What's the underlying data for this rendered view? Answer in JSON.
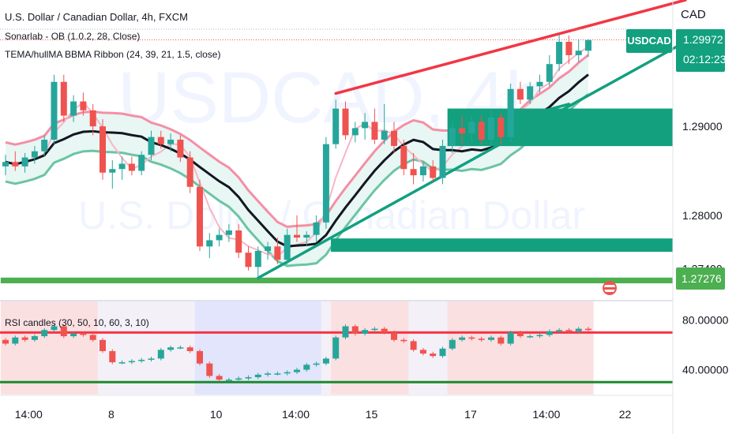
{
  "chart_data": {
    "type": "candlestick",
    "title": "U.S. Dollar / Canadian Dollar, 4h, FXCM",
    "watermark_symbol": "USDCAD, 4h",
    "watermark_name": "U.S. Dollar / Canadian Dollar",
    "currency_label": "CAD",
    "indicators": [
      "Sonarlab - OB (1.0.2, 28, Close)",
      "TEMA/hullMA BBMA Ribbon (24, 39, 21, 1.5, close)"
    ],
    "rsi_label": "RSI candles (30, 50, 10, 60, 3, 10)",
    "symbol_tag": "USDCAD",
    "last_price": "1.29972",
    "countdown": "02:12:23",
    "support_price": "1.27276",
    "yticks": [
      "1.29000",
      "1.28000",
      "1.27400"
    ],
    "rsi_yticks": [
      "80.00000",
      "40.00000"
    ],
    "xticks": [
      "14:00",
      "8",
      "10",
      "14:00",
      "15",
      "17",
      "14:00",
      "22"
    ],
    "ylim": [
      1.2705,
      1.3042
    ],
    "rsi_ylim": [
      20,
      95
    ],
    "rsi_levels": [
      70,
      30
    ],
    "candles": [
      [
        1.2855,
        1.2868,
        1.2845,
        1.286
      ],
      [
        1.286,
        1.2872,
        1.285,
        1.2855
      ],
      [
        1.2855,
        1.287,
        1.2848,
        1.2865
      ],
      [
        1.2865,
        1.2878,
        1.2858,
        1.2872
      ],
      [
        1.2872,
        1.289,
        1.2866,
        1.2885
      ],
      [
        1.2885,
        1.2958,
        1.288,
        1.295
      ],
      [
        1.295,
        1.2958,
        1.2905,
        1.2912
      ],
      [
        1.2912,
        1.2935,
        1.2905,
        1.2928
      ],
      [
        1.2928,
        1.2938,
        1.2912,
        1.2918
      ],
      [
        1.2918,
        1.2925,
        1.289,
        1.29
      ],
      [
        1.29,
        1.2908,
        1.284,
        1.2848
      ],
      [
        1.2848,
        1.2862,
        1.283,
        1.2852
      ],
      [
        1.2852,
        1.2866,
        1.284,
        1.2858
      ],
      [
        1.2858,
        1.2866,
        1.2845,
        1.285
      ],
      [
        1.285,
        1.2872,
        1.2845,
        1.2868
      ],
      [
        1.2868,
        1.2895,
        1.2862,
        1.2888
      ],
      [
        1.2888,
        1.2895,
        1.2875,
        1.288
      ],
      [
        1.288,
        1.2892,
        1.2872,
        1.2885
      ],
      [
        1.2885,
        1.289,
        1.286,
        1.2865
      ],
      [
        1.2865,
        1.2872,
        1.2825,
        1.2832
      ],
      [
        1.2832,
        1.284,
        1.276,
        1.2765
      ],
      [
        1.2765,
        1.278,
        1.2752,
        1.2772
      ],
      [
        1.2772,
        1.2785,
        1.2765,
        1.2778
      ],
      [
        1.2778,
        1.279,
        1.277,
        1.2783
      ],
      [
        1.2783,
        1.279,
        1.2752,
        1.2758
      ],
      [
        1.2758,
        1.2765,
        1.2738,
        1.2742
      ],
      [
        1.2742,
        1.2765,
        1.2728,
        1.276
      ],
      [
        1.276,
        1.277,
        1.275,
        1.2765
      ],
      [
        1.2765,
        1.2775,
        1.2745,
        1.275
      ],
      [
        1.275,
        1.2785,
        1.2745,
        1.2778
      ],
      [
        1.2778,
        1.28,
        1.277,
        1.2775
      ],
      [
        1.2775,
        1.2782,
        1.2765,
        1.2778
      ],
      [
        1.2778,
        1.28,
        1.277,
        1.2792
      ],
      [
        1.2792,
        1.2888,
        1.2785,
        1.288
      ],
      [
        1.288,
        1.293,
        1.2875,
        1.292
      ],
      [
        1.292,
        1.2928,
        1.2885,
        1.289
      ],
      [
        1.289,
        1.2905,
        1.2882,
        1.2898
      ],
      [
        1.2898,
        1.2915,
        1.2885,
        1.2905
      ],
      [
        1.2905,
        1.292,
        1.288,
        1.2885
      ],
      [
        1.2885,
        1.2925,
        1.288,
        1.2895
      ],
      [
        1.2895,
        1.2905,
        1.287,
        1.2878
      ],
      [
        1.2878,
        1.2885,
        1.2845,
        1.2852
      ],
      [
        1.2852,
        1.287,
        1.2835,
        1.2845
      ],
      [
        1.2845,
        1.286,
        1.2838,
        1.2855
      ],
      [
        1.2855,
        1.2862,
        1.2838,
        1.2842
      ],
      [
        1.2842,
        1.2885,
        1.2835,
        1.2878
      ],
      [
        1.2878,
        1.2905,
        1.287,
        1.2898
      ],
      [
        1.2898,
        1.2912,
        1.288,
        1.2892
      ],
      [
        1.2892,
        1.2912,
        1.2882,
        1.2905
      ],
      [
        1.2905,
        1.2912,
        1.288,
        1.2885
      ],
      [
        1.2885,
        1.2918,
        1.2878,
        1.291
      ],
      [
        1.291,
        1.2915,
        1.288,
        1.2888
      ],
      [
        1.2888,
        1.2948,
        1.2882,
        1.2942
      ],
      [
        1.2942,
        1.295,
        1.2925,
        1.293
      ],
      [
        1.293,
        1.295,
        1.2925,
        1.2945
      ],
      [
        1.2945,
        1.2958,
        1.2938,
        1.295
      ],
      [
        1.295,
        1.298,
        1.2945,
        1.297
      ],
      [
        1.297,
        1.3003,
        1.2962,
        1.2995
      ],
      [
        1.2995,
        1.3002,
        1.297,
        1.298
      ],
      [
        1.298,
        1.2998,
        1.2972,
        1.2985
      ],
      [
        1.2985,
        1.2998,
        1.2978,
        1.2997
      ]
    ],
    "rsi": [
      [
        64,
        61
      ],
      [
        61,
        66
      ],
      [
        66,
        64
      ],
      [
        64,
        67
      ],
      [
        67,
        72
      ],
      [
        72,
        75
      ],
      [
        75,
        67
      ],
      [
        67,
        69
      ],
      [
        69,
        68
      ],
      [
        68,
        64
      ],
      [
        64,
        55
      ],
      [
        55,
        46
      ],
      [
        46,
        46
      ],
      [
        46,
        47
      ],
      [
        47,
        48
      ],
      [
        48,
        49
      ],
      [
        49,
        56
      ],
      [
        56,
        58
      ],
      [
        58,
        58
      ],
      [
        58,
        55
      ],
      [
        55,
        45
      ],
      [
        45,
        35
      ],
      [
        35,
        32
      ],
      [
        32,
        32
      ],
      [
        32,
        33
      ],
      [
        33,
        34
      ],
      [
        34,
        36
      ],
      [
        36,
        37
      ],
      [
        37,
        37
      ],
      [
        37,
        38
      ],
      [
        38,
        40
      ],
      [
        40,
        44
      ],
      [
        44,
        45
      ],
      [
        45,
        49
      ],
      [
        49,
        66
      ],
      [
        66,
        75
      ],
      [
        75,
        69
      ],
      [
        69,
        72
      ],
      [
        72,
        73
      ],
      [
        73,
        70
      ],
      [
        70,
        64
      ],
      [
        64,
        63
      ],
      [
        63,
        56
      ],
      [
        56,
        53
      ],
      [
        53,
        51
      ],
      [
        51,
        57
      ],
      [
        57,
        64
      ],
      [
        64,
        66
      ],
      [
        66,
        65
      ],
      [
        65,
        64
      ],
      [
        64,
        66
      ],
      [
        66,
        61
      ],
      [
        61,
        70
      ],
      [
        70,
        67
      ],
      [
        67,
        67
      ],
      [
        67,
        68
      ],
      [
        68,
        71
      ],
      [
        71,
        72
      ],
      [
        72,
        71
      ],
      [
        71,
        73
      ],
      [
        73,
        72
      ]
    ],
    "order_blocks": [
      {
        "from": 1.28778,
        "to": 1.292,
        "start": 46,
        "color": "#12a07f"
      },
      {
        "from": 1.2759,
        "to": 1.2774,
        "start": 34,
        "color": "#12a07f"
      },
      {
        "from": 1.27236,
        "to": 1.273,
        "start": 0,
        "color": "#4caf50"
      }
    ],
    "trend_lines": [
      {
        "from": [
          34,
          1.2937
        ],
        "to": [
          70,
          1.3042
        ],
        "color": "#f23645"
      },
      {
        "from": [
          26,
          1.27296
        ],
        "to": [
          70,
          1.2995
        ],
        "color": "#12a07f"
      },
      {
        "from": [
          46,
          1.289
        ],
        "to": [
          58,
          1.2925
        ],
        "color": "#12a07f"
      }
    ],
    "colors": {
      "up": "#26a69a",
      "down": "#ef5350",
      "accent": "#12a07f",
      "rsi_line_upper": "#f23645",
      "rsi_line_lower": "#1b8a2e"
    }
  }
}
